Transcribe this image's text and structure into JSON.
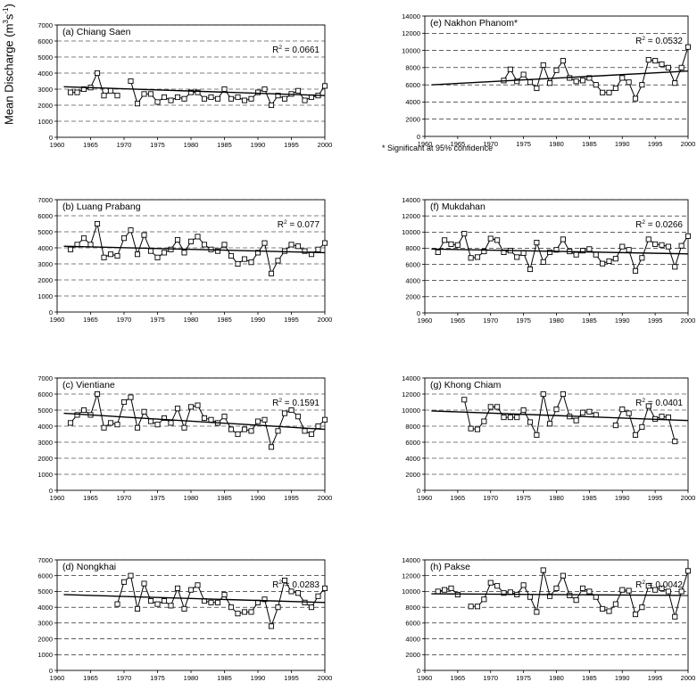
{
  "figure": {
    "ylabel": {
      "prefix": "Mean Discharge (m",
      "sup1": "3",
      "mid": "s",
      "sup2": "-1",
      "suffix": ")"
    },
    "footnote": "* Significant at 95% confidence"
  },
  "chart_data": [
    {
      "type": "line",
      "title": "(a) Chiang Saen",
      "r2_base": "R",
      "r2_sup": "2",
      "r2_value": "= 0.0661",
      "xlim": [
        1960,
        2000
      ],
      "ylim": [
        0,
        7000
      ],
      "yticks": [
        "0",
        "1000",
        "2000",
        "3000",
        "4000",
        "5000",
        "6000",
        "7000"
      ],
      "xticks": [
        "1960",
        "1965",
        "1970",
        "1975",
        "1980",
        "1985",
        "1990",
        "1995",
        "2000"
      ],
      "grid": true,
      "x": [
        1962,
        1963,
        1964,
        1965,
        1966,
        1967,
        1968,
        1969,
        1971,
        1972,
        1973,
        1974,
        1975,
        1976,
        1977,
        1978,
        1979,
        1980,
        1981,
        1982,
        1983,
        1984,
        1985,
        1986,
        1987,
        1988,
        1989,
        1990,
        1991,
        1992,
        1993,
        1994,
        1995,
        1996,
        1997,
        1998,
        1999,
        2000
      ],
      "y": [
        2800,
        2800,
        3000,
        3100,
        4000,
        2600,
        2900,
        2600,
        3500,
        2100,
        2700,
        2700,
        2200,
        2500,
        2300,
        2500,
        2400,
        2800,
        2800,
        2400,
        2500,
        2400,
        3000,
        2400,
        2500,
        2300,
        2400,
        2800,
        3000,
        2000,
        2600,
        2400,
        2700,
        2900,
        2300,
        2500,
        2600,
        3200
      ],
      "trend": [
        [
          1961,
          3150
        ],
        [
          2000,
          2600
        ]
      ]
    },
    {
      "type": "line",
      "title": "(b) Luang Prabang",
      "r2_base": "R",
      "r2_sup": "2",
      "r2_value": "= 0.077",
      "xlim": [
        1960,
        2000
      ],
      "ylim": [
        0,
        7000
      ],
      "yticks": [
        "0",
        "1000",
        "2000",
        "3000",
        "4000",
        "5000",
        "6000",
        "7000"
      ],
      "xticks": [
        "1960",
        "1965",
        "1970",
        "1975",
        "1980",
        "1985",
        "1990",
        "1995",
        "2000"
      ],
      "grid": true,
      "x": [
        1962,
        1963,
        1964,
        1965,
        1966,
        1967,
        1968,
        1969,
        1970,
        1971,
        1972,
        1973,
        1974,
        1975,
        1976,
        1977,
        1978,
        1979,
        1980,
        1981,
        1982,
        1983,
        1984,
        1985,
        1986,
        1987,
        1988,
        1989,
        1990,
        1991,
        1992,
        1993,
        1994,
        1995,
        1996,
        1997,
        1998,
        1999,
        2000
      ],
      "y": [
        3900,
        4200,
        4600,
        4200,
        5500,
        3400,
        3600,
        3500,
        4600,
        5100,
        3600,
        4800,
        3800,
        3400,
        3700,
        3900,
        4500,
        3700,
        4400,
        4700,
        4200,
        3900,
        3800,
        4200,
        3500,
        3000,
        3300,
        3100,
        3700,
        4300,
        2400,
        3200,
        3800,
        4200,
        4100,
        3800,
        3600,
        3900,
        4300
      ],
      "trend": [
        [
          1961,
          4100
        ],
        [
          2000,
          3700
        ]
      ]
    },
    {
      "type": "line",
      "title": "(c) Vientiane",
      "r2_base": "R",
      "r2_sup": "2",
      "r2_value": "= 0.1591",
      "xlim": [
        1960,
        2000
      ],
      "ylim": [
        0,
        7000
      ],
      "yticks": [
        "0",
        "1000",
        "2000",
        "3000",
        "4000",
        "5000",
        "6000",
        "7000"
      ],
      "xticks": [
        "1960",
        "1965",
        "1970",
        "1975",
        "1980",
        "1985",
        "1990",
        "1995",
        "2000"
      ],
      "grid": true,
      "x": [
        1962,
        1963,
        1964,
        1965,
        1966,
        1967,
        1968,
        1969,
        1970,
        1971,
        1972,
        1973,
        1974,
        1975,
        1976,
        1977,
        1978,
        1979,
        1980,
        1981,
        1982,
        1983,
        1984,
        1985,
        1986,
        1987,
        1988,
        1989,
        1990,
        1991,
        1992,
        1993,
        1994,
        1995,
        1996,
        1997,
        1998,
        1999,
        2000
      ],
      "y": [
        4200,
        4700,
        5000,
        4700,
        6000,
        3900,
        4200,
        4100,
        5500,
        5800,
        3900,
        4900,
        4300,
        4100,
        4500,
        4200,
        5100,
        3900,
        5200,
        5300,
        4500,
        4400,
        4200,
        4600,
        3800,
        3500,
        3800,
        3700,
        4300,
        4400,
        2700,
        3700,
        4800,
        5000,
        4600,
        3700,
        3500,
        4000,
        4400
      ],
      "trend": [
        [
          1961,
          4800
        ],
        [
          2000,
          3800
        ]
      ]
    },
    {
      "type": "line",
      "title": "(d) Nongkhai",
      "r2_base": "R",
      "r2_sup": "2",
      "r2_value": "= 0.0283",
      "xlim": [
        1960,
        2000
      ],
      "ylim": [
        0,
        7000
      ],
      "yticks": [
        "0",
        "1000",
        "2000",
        "3000",
        "4000",
        "5000",
        "6000",
        "7000"
      ],
      "xticks": [
        "1960",
        "1965",
        "1970",
        "1975",
        "1980",
        "1985",
        "1990",
        "1995",
        "2000"
      ],
      "grid": true,
      "x": [
        1969,
        1970,
        1971,
        1972,
        1973,
        1974,
        1975,
        1976,
        1977,
        1978,
        1979,
        1980,
        1981,
        1982,
        1983,
        1984,
        1985,
        1986,
        1987,
        1988,
        1989,
        1990,
        1991,
        1992,
        1993,
        1994,
        1995,
        1996,
        1997,
        1998,
        1999,
        2000
      ],
      "y": [
        4200,
        5600,
        6000,
        3900,
        5500,
        4400,
        4200,
        4400,
        4100,
        5200,
        3900,
        5100,
        5400,
        4400,
        4300,
        4300,
        4800,
        4000,
        3600,
        3700,
        3700,
        4300,
        4500,
        2800,
        4000,
        5700,
        5000,
        4900,
        4300,
        4000,
        4700,
        5200
      ],
      "trend": [
        [
          1961,
          4800
        ],
        [
          2000,
          4300
        ]
      ]
    },
    {
      "type": "line",
      "title": "(e) Nakhon Phanom*",
      "r2_base": "R",
      "r2_sup": "2",
      "r2_value": "= 0.0532",
      "xlim": [
        1960,
        2000
      ],
      "ylim": [
        0,
        14000
      ],
      "yticks": [
        "0",
        "2000",
        "4000",
        "6000",
        "8000",
        "10000",
        "12000",
        "14000"
      ],
      "xticks": [
        "1960",
        "1965",
        "1970",
        "1975",
        "1980",
        "1985",
        "1990",
        "1995",
        "2000"
      ],
      "grid": true,
      "x": [
        1972,
        1973,
        1974,
        1975,
        1976,
        1977,
        1978,
        1979,
        1980,
        1981,
        1982,
        1983,
        1984,
        1985,
        1986,
        1987,
        1988,
        1989,
        1990,
        1991,
        1992,
        1993,
        1994,
        1995,
        1996,
        1997,
        1998,
        1999,
        2000
      ],
      "y": [
        6500,
        7800,
        6400,
        7200,
        6300,
        5600,
        8300,
        6200,
        7700,
        8800,
        6800,
        6400,
        6500,
        6800,
        6000,
        5100,
        5100,
        5600,
        6800,
        6300,
        4400,
        6000,
        8900,
        8800,
        8400,
        8000,
        6200,
        8000,
        10400
      ],
      "trend": [
        [
          1961,
          6000
        ],
        [
          2000,
          7600
        ]
      ]
    },
    {
      "type": "line",
      "title": "(f) Mukdahan",
      "r2_base": "R",
      "r2_sup": "2",
      "r2_value": "= 0.0266",
      "xlim": [
        1960,
        2000
      ],
      "ylim": [
        0,
        14000
      ],
      "yticks": [
        "0",
        "2000",
        "4000",
        "6000",
        "8000",
        "10000",
        "12000",
        "14000"
      ],
      "xticks": [
        "1960",
        "1965",
        "1970",
        "1975",
        "1980",
        "1985",
        "1990",
        "1995",
        "2000"
      ],
      "grid": true,
      "x": [
        1962,
        1963,
        1964,
        1965,
        1966,
        1967,
        1968,
        1969,
        1970,
        1971,
        1972,
        1973,
        1974,
        1975,
        1976,
        1977,
        1978,
        1979,
        1980,
        1981,
        1982,
        1983,
        1984,
        1985,
        1986,
        1987,
        1988,
        1989,
        1990,
        1991,
        1992,
        1993,
        1994,
        1995,
        1996,
        1997,
        1998,
        1999,
        2000
      ],
      "y": [
        7500,
        9000,
        8500,
        8400,
        9800,
        6800,
        6900,
        7600,
        9200,
        9000,
        7500,
        7700,
        6900,
        7400,
        5400,
        8700,
        6300,
        7500,
        7800,
        9100,
        7600,
        7200,
        7700,
        7900,
        7200,
        6100,
        6400,
        6700,
        8200,
        7800,
        5200,
        6800,
        9100,
        8500,
        8400,
        8200,
        5700,
        8300,
        9500
      ],
      "trend": [
        [
          1961,
          7900
        ],
        [
          2000,
          7300
        ]
      ]
    },
    {
      "type": "line",
      "title": "(g) Khong Chiam",
      "r2_base": "R",
      "r2_sup": "2",
      "r2_value": "= 0.0401",
      "xlim": [
        1960,
        2000
      ],
      "ylim": [
        0,
        14000
      ],
      "yticks": [
        "0",
        "2000",
        "4000",
        "6000",
        "8000",
        "10000",
        "12000",
        "14000"
      ],
      "xticks": [
        "1960",
        "1965",
        "1970",
        "1975",
        "1980",
        "1985",
        "1990",
        "1995",
        "2000"
      ],
      "grid": true,
      "x": [
        1966,
        1967,
        1968,
        1969,
        1970,
        1971,
        1972,
        1973,
        1974,
        1975,
        1976,
        1977,
        1978,
        1979,
        1980,
        1981,
        1982,
        1983,
        1984,
        1985,
        1986,
        1989,
        1990,
        1991,
        1992,
        1993,
        1994,
        1995,
        1996,
        1997,
        1998
      ],
      "y": [
        11300,
        7700,
        7600,
        8600,
        10400,
        10400,
        9100,
        9100,
        9100,
        10000,
        8500,
        6900,
        12000,
        8300,
        10100,
        12000,
        9200,
        8700,
        9700,
        9800,
        9400,
        8100,
        10100,
        9600,
        6900,
        7900,
        10500,
        8900,
        9200,
        9100,
        6100
      ],
      "trend": [
        [
          1961,
          9900
        ],
        [
          2000,
          8700
        ]
      ]
    },
    {
      "type": "line",
      "title": "(h) Pakse",
      "r2_base": "R",
      "r2_sup": "2",
      "r2_value": "= 0.0042",
      "xlim": [
        1960,
        2000
      ],
      "ylim": [
        0,
        14000
      ],
      "yticks": [
        "0",
        "2000",
        "4000",
        "6000",
        "8000",
        "10000",
        "12000",
        "14000"
      ],
      "xticks": [
        "1960",
        "1965",
        "1970",
        "1975",
        "1980",
        "1985",
        "1990",
        "1995",
        "2000"
      ],
      "grid": true,
      "x": [
        1962,
        1963,
        1964,
        1965,
        1967,
        1968,
        1969,
        1970,
        1971,
        1972,
        1973,
        1974,
        1975,
        1976,
        1977,
        1978,
        1979,
        1980,
        1981,
        1982,
        1983,
        1984,
        1985,
        1986,
        1987,
        1988,
        1989,
        1990,
        1991,
        1992,
        1993,
        1994,
        1995,
        1996,
        1997,
        1998,
        1999,
        2000
      ],
      "y": [
        10000,
        10200,
        10400,
        9600,
        8100,
        8100,
        9000,
        11100,
        10700,
        9800,
        9900,
        9600,
        10800,
        9300,
        7400,
        12700,
        9400,
        10400,
        12000,
        9500,
        8900,
        10400,
        10000,
        9300,
        7800,
        7500,
        8400,
        10200,
        10100,
        7100,
        8000,
        10700,
        10200,
        10400,
        10000,
        6800,
        10000,
        12600
      ],
      "trend": [
        [
          1961,
          9700
        ],
        [
          2000,
          9500
        ]
      ]
    }
  ]
}
